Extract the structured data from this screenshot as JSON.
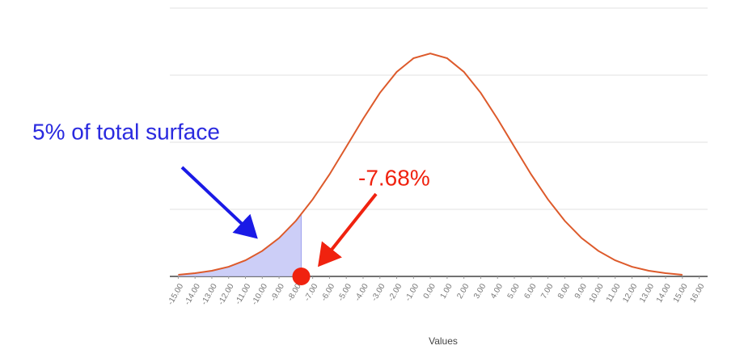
{
  "chart_data": {
    "type": "line",
    "x": [
      -15,
      -14,
      -13,
      -12,
      -11,
      -10,
      -9,
      -8,
      -7,
      -6,
      -5,
      -4,
      -3,
      -2,
      -1,
      0,
      1,
      2,
      3,
      4,
      5,
      6,
      7,
      8,
      9,
      10,
      11,
      12,
      13,
      14,
      15
    ],
    "series": [
      {
        "color": "#dd5a2b",
        "values": [
          0.0006,
          0.0012,
          0.0021,
          0.0036,
          0.006,
          0.0095,
          0.0143,
          0.0207,
          0.0287,
          0.038,
          0.0483,
          0.0587,
          0.0684,
          0.0762,
          0.0813,
          0.0831,
          0.0813,
          0.0762,
          0.0684,
          0.0587,
          0.0483,
          0.038,
          0.0287,
          0.0207,
          0.0143,
          0.0095,
          0.006,
          0.0036,
          0.0021,
          0.0012,
          0.0006
        ]
      }
    ],
    "xlim": [
      -15.5,
      16.5
    ],
    "xticks": [
      {
        "value": -15,
        "label": "-15.00"
      },
      {
        "value": -14,
        "label": "-14.00"
      },
      {
        "value": -13,
        "label": "-13.00"
      },
      {
        "value": -12,
        "label": "-12.00"
      },
      {
        "value": -11,
        "label": "-11.00"
      },
      {
        "value": -10,
        "label": "-10.00"
      },
      {
        "value": -9,
        "label": "-9.00"
      },
      {
        "value": -8,
        "label": "-8.00"
      },
      {
        "value": -7,
        "label": "-7.00"
      },
      {
        "value": -6,
        "label": "-6.00"
      },
      {
        "value": -5,
        "label": "-5.00"
      },
      {
        "value": -4,
        "label": "-4.00"
      },
      {
        "value": -3,
        "label": "-3.00"
      },
      {
        "value": -2,
        "label": "-2.00"
      },
      {
        "value": -1,
        "label": "-1.00"
      },
      {
        "value": 0,
        "label": "0.00"
      },
      {
        "value": 1,
        "label": "1.00"
      },
      {
        "value": 2,
        "label": "2.00"
      },
      {
        "value": 3,
        "label": "3.00"
      },
      {
        "value": 4,
        "label": "4.00"
      },
      {
        "value": 5,
        "label": "5.00"
      },
      {
        "value": 6,
        "label": "6.00"
      },
      {
        "value": 7,
        "label": "7.00"
      },
      {
        "value": 8,
        "label": "8.00"
      },
      {
        "value": 9,
        "label": "9.00"
      },
      {
        "value": 10,
        "label": "10.00"
      },
      {
        "value": 11,
        "label": "11.00"
      },
      {
        "value": 12,
        "label": "12.00"
      },
      {
        "value": 13,
        "label": "13.00"
      },
      {
        "value": 14,
        "label": "14.00"
      },
      {
        "value": 15,
        "label": "15.00"
      },
      {
        "value": 16,
        "label": "16.00"
      }
    ],
    "ylim": [
      0,
      0.1
    ],
    "yticks": [
      0,
      0.025,
      0.05,
      0.075,
      0.1
    ],
    "grid": true,
    "x_label": "Values",
    "area_label": "5% of total surface",
    "area_color": "#c3c6f6",
    "area_label_color": "#2a2adf",
    "threshold": {
      "value": -7.68,
      "label": "-7.68%"
    },
    "threshold_color": "#f0220f"
  }
}
